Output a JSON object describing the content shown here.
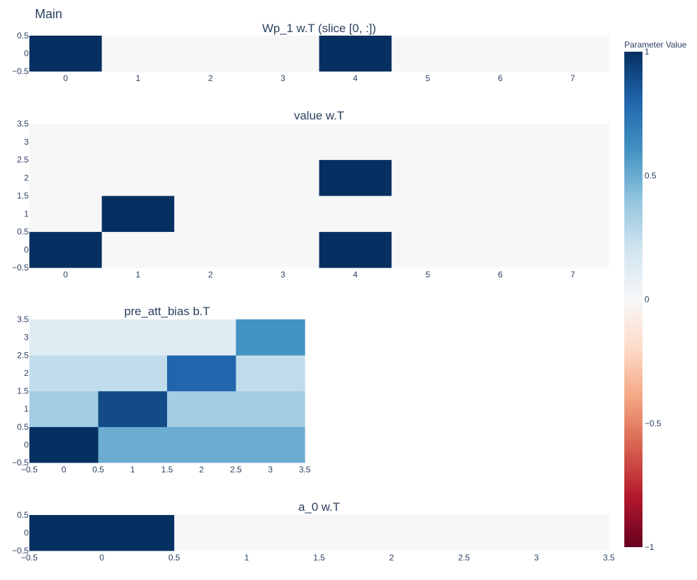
{
  "title": "Main",
  "colorbar": {
    "title": "Parameter Value",
    "range": [
      -1,
      1
    ],
    "ticks": [
      1,
      0.5,
      0,
      -0.5,
      -1
    ],
    "tick_labels": [
      "1",
      "0.5",
      "0",
      "−0.5",
      "−1"
    ],
    "colorscale": [
      "#67001f",
      "#b2182b",
      "#d6604d",
      "#f4a582",
      "#fddbc7",
      "#f7f7f7",
      "#d1e5f0",
      "#92c5de",
      "#4393c3",
      "#2166ac",
      "#053061"
    ]
  },
  "chart_data": [
    {
      "type": "heatmap",
      "title": "Wp_1 w.T (slice [0, :])",
      "x": [
        0,
        1,
        2,
        3,
        4,
        5,
        6,
        7
      ],
      "y": [
        0
      ],
      "z": [
        [
          1,
          0,
          0,
          0,
          1,
          0,
          0,
          0
        ]
      ],
      "xrange": [
        -0.5,
        7.5
      ],
      "yrange": [
        -0.5,
        0.5
      ],
      "x_ticks": [
        0,
        1,
        2,
        3,
        4,
        5,
        6,
        7
      ],
      "x_tick_labels": [
        "0",
        "1",
        "2",
        "3",
        "4",
        "5",
        "6",
        "7"
      ],
      "y_ticks": [
        0.5,
        0,
        -0.5
      ],
      "y_tick_labels": [
        "0.5",
        "0",
        "−0.5"
      ]
    },
    {
      "type": "heatmap",
      "title": "value w.T",
      "x": [
        0,
        1,
        2,
        3,
        4,
        5,
        6,
        7
      ],
      "y": [
        0,
        1,
        2,
        3
      ],
      "z": [
        [
          1,
          0,
          0,
          0,
          1,
          0,
          0,
          0
        ],
        [
          0,
          1,
          0,
          0,
          0,
          0,
          0,
          0
        ],
        [
          0,
          0,
          0,
          0,
          1,
          0,
          0,
          0
        ],
        [
          0,
          0,
          0,
          0,
          0,
          0,
          0,
          0
        ]
      ],
      "xrange": [
        -0.5,
        7.5
      ],
      "yrange": [
        -0.5,
        3.5
      ],
      "x_ticks": [
        0,
        1,
        2,
        3,
        4,
        5,
        6,
        7
      ],
      "x_tick_labels": [
        "0",
        "1",
        "2",
        "3",
        "4",
        "5",
        "6",
        "7"
      ],
      "y_ticks": [
        3.5,
        3,
        2.5,
        2,
        1.5,
        1,
        0.5,
        0,
        -0.5
      ],
      "y_tick_labels": [
        "3.5",
        "3",
        "2.5",
        "2",
        "1.5",
        "1",
        "0.5",
        "0",
        "−0.5"
      ]
    },
    {
      "type": "heatmap",
      "title": "pre_att_bias b.T",
      "x": [
        0,
        1,
        2,
        3
      ],
      "y": [
        0,
        1,
        2,
        3
      ],
      "z": [
        [
          1,
          0.5,
          0.5,
          0.5
        ],
        [
          0.35,
          0.9,
          0.35,
          0.35
        ],
        [
          0.25,
          0.25,
          0.8,
          0.25
        ],
        [
          0.12,
          0.12,
          0.12,
          0.6
        ]
      ],
      "xrange": [
        -0.5,
        3.5
      ],
      "yrange": [
        -0.5,
        3.5
      ],
      "x_ticks": [
        -0.5,
        0,
        0.5,
        1,
        1.5,
        2,
        2.5,
        3,
        3.5
      ],
      "x_tick_labels": [
        "−0.5",
        "0",
        "0.5",
        "1",
        "1.5",
        "2",
        "2.5",
        "3",
        "3.5"
      ],
      "y_ticks": [
        3.5,
        3,
        2.5,
        2,
        1.5,
        1,
        0.5,
        0,
        -0.5
      ],
      "y_tick_labels": [
        "3.5",
        "3",
        "2.5",
        "2",
        "1.5",
        "1",
        "0.5",
        "0",
        "−0.5"
      ]
    },
    {
      "type": "heatmap",
      "title": "a_0 w.T",
      "x": [
        0,
        1,
        2,
        3
      ],
      "y": [
        0
      ],
      "z": [
        [
          1,
          0,
          0,
          0
        ]
      ],
      "xrange": [
        -0.5,
        3.5
      ],
      "yrange": [
        -0.5,
        0.5
      ],
      "x_ticks": [
        -0.5,
        0,
        0.5,
        1,
        1.5,
        2,
        2.5,
        3,
        3.5
      ],
      "x_tick_labels": [
        "−0.5",
        "0",
        "0.5",
        "1",
        "1.5",
        "2",
        "2.5",
        "3",
        "3.5"
      ],
      "y_ticks": [
        0.5,
        0,
        -0.5
      ],
      "y_tick_labels": [
        "0.5",
        "0",
        "−0.5"
      ]
    }
  ]
}
